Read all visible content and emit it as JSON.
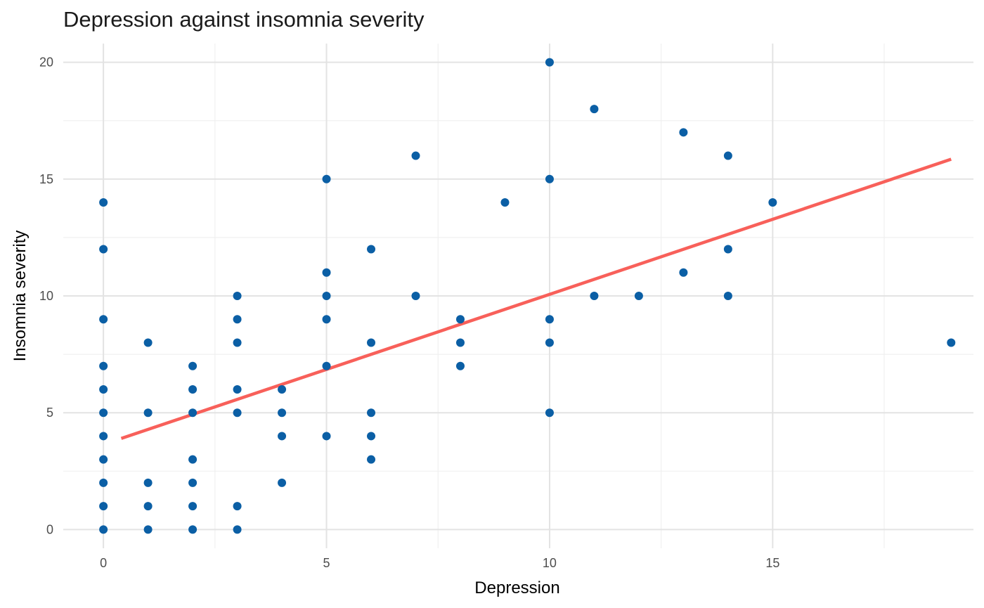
{
  "colors": {
    "point": "#0b5fa5",
    "fit_line": "#f8605a",
    "grid_major": "#e3e3e3",
    "grid_minor": "#f0f0f0",
    "background": "#ffffff"
  },
  "chart_data": {
    "type": "scatter",
    "title": "Depression against insomnia severity",
    "xlabel": "Depression",
    "ylabel": "Insomnia severity",
    "xlim": [
      -0.9,
      19.5
    ],
    "ylim": [
      -0.8,
      20.8
    ],
    "x_ticks": [
      0,
      5,
      10,
      15
    ],
    "y_ticks": [
      0,
      5,
      10,
      15,
      20
    ],
    "x_minor_ticks": [
      2.5,
      7.5,
      12.5,
      17.5
    ],
    "y_minor_ticks": [
      2.5,
      7.5,
      12.5,
      17.5
    ],
    "grid": true,
    "legend": "none",
    "series": [
      {
        "points": [
          [
            0,
            0
          ],
          [
            0,
            1
          ],
          [
            0,
            2
          ],
          [
            0,
            3
          ],
          [
            0,
            4
          ],
          [
            0,
            5
          ],
          [
            0,
            6
          ],
          [
            0,
            7
          ],
          [
            0,
            9
          ],
          [
            0,
            12
          ],
          [
            0,
            14
          ],
          [
            1,
            0
          ],
          [
            1,
            1
          ],
          [
            1,
            2
          ],
          [
            1,
            5
          ],
          [
            1,
            8
          ],
          [
            2,
            0
          ],
          [
            2,
            1
          ],
          [
            2,
            2
          ],
          [
            2,
            3
          ],
          [
            2,
            5
          ],
          [
            2,
            6
          ],
          [
            2,
            7
          ],
          [
            3,
            0
          ],
          [
            3,
            1
          ],
          [
            3,
            5
          ],
          [
            3,
            6
          ],
          [
            3,
            8
          ],
          [
            3,
            9
          ],
          [
            3,
            10
          ],
          [
            4,
            2
          ],
          [
            4,
            4
          ],
          [
            4,
            5
          ],
          [
            4,
            6
          ],
          [
            5,
            4
          ],
          [
            5,
            7
          ],
          [
            5,
            9
          ],
          [
            5,
            10
          ],
          [
            5,
            11
          ],
          [
            5,
            15
          ],
          [
            6,
            3
          ],
          [
            6,
            4
          ],
          [
            6,
            5
          ],
          [
            6,
            8
          ],
          [
            6,
            12
          ],
          [
            7,
            10
          ],
          [
            7,
            16
          ],
          [
            8,
            7
          ],
          [
            8,
            8
          ],
          [
            8,
            9
          ],
          [
            9,
            14
          ],
          [
            10,
            5
          ],
          [
            10,
            8
          ],
          [
            10,
            9
          ],
          [
            10,
            15
          ],
          [
            10,
            20
          ],
          [
            11,
            10
          ],
          [
            11,
            18
          ],
          [
            12,
            10
          ],
          [
            13,
            11
          ],
          [
            13,
            17
          ],
          [
            14,
            10
          ],
          [
            14,
            12
          ],
          [
            14,
            16
          ],
          [
            15,
            14
          ],
          [
            19,
            8
          ]
        ]
      }
    ],
    "fit_line": {
      "x": [
        0.4,
        19
      ],
      "y": [
        3.9,
        15.85
      ]
    }
  }
}
